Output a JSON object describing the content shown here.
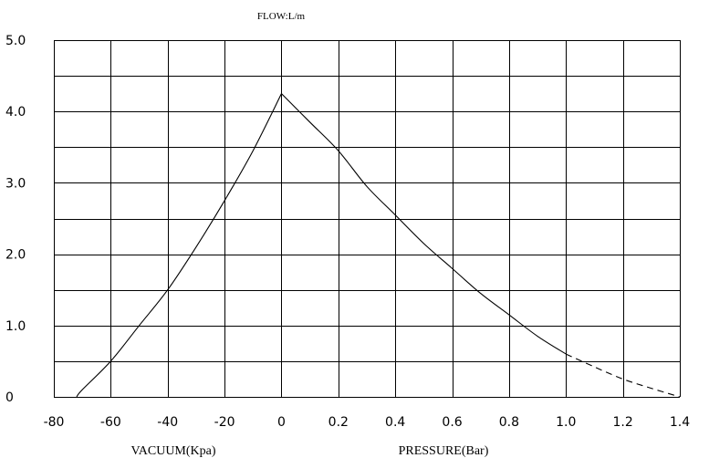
{
  "chart_data": {
    "type": "line",
    "title": "FLOW:L/m",
    "ylabel": "",
    "ylim": [
      0,
      5
    ],
    "y_ticks": [
      {
        "value": 0,
        "label": "0"
      },
      {
        "value": 1,
        "label": "1.0"
      },
      {
        "value": 2,
        "label": "2.0"
      },
      {
        "value": 3,
        "label": "3.0"
      },
      {
        "value": 4,
        "label": "4.0"
      },
      {
        "value": 5,
        "label": "5.0"
      }
    ],
    "grid": true,
    "x_axes": [
      {
        "label": "VACUUM(Kpa)",
        "range": [
          -80,
          0
        ],
        "ticks": [
          {
            "value": -80,
            "label": "-80"
          },
          {
            "value": -60,
            "label": "-60"
          },
          {
            "value": -40,
            "label": "-40"
          },
          {
            "value": -20,
            "label": "-20"
          },
          {
            "value": 0,
            "label": "0"
          }
        ]
      },
      {
        "label": "PRESSURE(Bar)",
        "range": [
          0,
          1.4
        ],
        "ticks": [
          {
            "value": 0.2,
            "label": "0.2"
          },
          {
            "value": 0.4,
            "label": "0.4"
          },
          {
            "value": 0.6,
            "label": "0.6"
          },
          {
            "value": 0.8,
            "label": "0.8"
          },
          {
            "value": 1.0,
            "label": "1.0"
          },
          {
            "value": 1.2,
            "label": "1.2"
          },
          {
            "value": 1.4,
            "label": "1.4"
          }
        ]
      }
    ],
    "series": [
      {
        "axis": "vacuum",
        "style": "solid",
        "x": [
          -72,
          -70,
          -60,
          -50,
          -40,
          -30,
          -20,
          -10,
          0
        ],
        "y": [
          0,
          0.1,
          0.5,
          1.0,
          1.5,
          2.1,
          2.75,
          3.45,
          4.25
        ]
      },
      {
        "axis": "pressure",
        "style": "solid",
        "x": [
          0,
          0.1,
          0.2,
          0.3,
          0.4,
          0.5,
          0.6,
          0.7,
          0.8,
          0.9,
          1.0
        ],
        "y": [
          4.25,
          3.85,
          3.45,
          2.95,
          2.55,
          2.15,
          1.8,
          1.45,
          1.15,
          0.85,
          0.6
        ]
      },
      {
        "axis": "pressure",
        "style": "dashed",
        "x": [
          1.0,
          1.1,
          1.2,
          1.3,
          1.4
        ],
        "y": [
          0.6,
          0.42,
          0.25,
          0.12,
          0
        ]
      }
    ],
    "colors": {
      "line": "#000000",
      "grid": "#000000",
      "background": "#ffffff"
    }
  }
}
